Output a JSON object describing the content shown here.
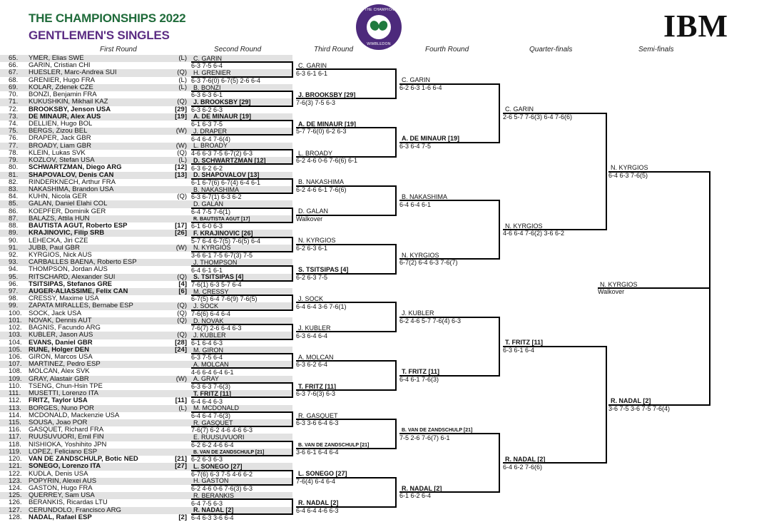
{
  "header": {
    "title": "THE CHAMPIONSHIPS 2022",
    "subtitle": "GENTLEMEN'S SINGLES",
    "logo_text_top": "THE CHAMPIONSHIPS",
    "logo_text_bottom": "WIMBLEDON",
    "sponsor": "IBM",
    "colors": {
      "title": "#1f6b3a",
      "subtitle": "#5b2c83",
      "logo": "#4d2a7c"
    }
  },
  "round_headers": [
    "First Round",
    "Second Round",
    "Third Round",
    "Fourth Round",
    "Quarter-finals",
    "Semi-finals"
  ],
  "first_round": [
    {
      "num": "65.",
      "name": "YMER, Elias SWE",
      "tag": "(L)"
    },
    {
      "num": "66.",
      "name": "GARIN, Cristian CHI",
      "tag": ""
    },
    {
      "num": "67.",
      "name": "HUESLER, Marc-Andrea SUI",
      "tag": "(Q)"
    },
    {
      "num": "68.",
      "name": "GRENIER, Hugo FRA",
      "tag": "(L)"
    },
    {
      "num": "69.",
      "name": "KOLAR, Zdenek CZE",
      "tag": "(L)"
    },
    {
      "num": "70.",
      "name": "BONZI, Benjamin FRA",
      "tag": ""
    },
    {
      "num": "71.",
      "name": "KUKUSHKIN, Mikhail KAZ",
      "tag": "(Q)"
    },
    {
      "num": "72.",
      "name": "BROOKSBY, Jenson USA",
      "tag": "[29]"
    },
    {
      "num": "73.",
      "name": "DE MINAUR, Alex AUS",
      "tag": "[19]"
    },
    {
      "num": "74.",
      "name": "DELLIEN, Hugo BOL",
      "tag": ""
    },
    {
      "num": "75.",
      "name": "BERGS, Zizou BEL",
      "tag": "(W)"
    },
    {
      "num": "76.",
      "name": "DRAPER, Jack GBR",
      "tag": ""
    },
    {
      "num": "77.",
      "name": "BROADY, Liam GBR",
      "tag": "(W)"
    },
    {
      "num": "78.",
      "name": "KLEIN, Lukas SVK",
      "tag": "(Q)"
    },
    {
      "num": "79.",
      "name": "KOZLOV, Stefan USA",
      "tag": "(L)"
    },
    {
      "num": "80.",
      "name": "SCHWARTZMAN, Diego ARG",
      "tag": "[12]"
    },
    {
      "num": "81.",
      "name": "SHAPOVALOV, Denis CAN",
      "tag": "[13]"
    },
    {
      "num": "82.",
      "name": "RINDERKNECH, Arthur FRA",
      "tag": ""
    },
    {
      "num": "83.",
      "name": "NAKASHIMA, Brandon USA",
      "tag": ""
    },
    {
      "num": "84.",
      "name": "KUHN, Nicola GER",
      "tag": "(Q)"
    },
    {
      "num": "85.",
      "name": "GALAN, Daniel Elahi COL",
      "tag": ""
    },
    {
      "num": "86.",
      "name": "KOEPFER, Dominik GER",
      "tag": ""
    },
    {
      "num": "87.",
      "name": "BALAZS, Attila HUN",
      "tag": ""
    },
    {
      "num": "88.",
      "name": "BAUTISTA AGUT, Roberto ESP",
      "tag": "[17]"
    },
    {
      "num": "89.",
      "name": "KRAJINOVIC, Filip SRB",
      "tag": "[26]"
    },
    {
      "num": "90.",
      "name": "LEHECKA, Jiri CZE",
      "tag": ""
    },
    {
      "num": "91.",
      "name": "JUBB, Paul GBR",
      "tag": "(W)"
    },
    {
      "num": "92.",
      "name": "KYRGIOS, Nick AUS",
      "tag": ""
    },
    {
      "num": "93.",
      "name": "CARBALLES BAENA, Roberto ESP",
      "tag": ""
    },
    {
      "num": "94.",
      "name": "THOMPSON, Jordan AUS",
      "tag": ""
    },
    {
      "num": "95.",
      "name": "RITSCHARD, Alexander SUI",
      "tag": "(Q)"
    },
    {
      "num": "96.",
      "name": "TSITSIPAS, Stefanos GRE",
      "tag": "[4]"
    },
    {
      "num": "97.",
      "name": "AUGER-ALIASSIME, Felix CAN",
      "tag": "[6]"
    },
    {
      "num": "98.",
      "name": "CRESSY, Maxime USA",
      "tag": ""
    },
    {
      "num": "99.",
      "name": "ZAPATA MIRALLES, Bernabe ESP",
      "tag": "(Q)"
    },
    {
      "num": "100.",
      "name": "SOCK, Jack USA",
      "tag": "(Q)"
    },
    {
      "num": "101.",
      "name": "NOVAK, Dennis AUT",
      "tag": "(Q)"
    },
    {
      "num": "102.",
      "name": "BAGNIS, Facundo ARG",
      "tag": ""
    },
    {
      "num": "103.",
      "name": "KUBLER, Jason AUS",
      "tag": "(Q)"
    },
    {
      "num": "104.",
      "name": "EVANS, Daniel GBR",
      "tag": "[28]"
    },
    {
      "num": "105.",
      "name": "RUNE, Holger DEN",
      "tag": "[24]"
    },
    {
      "num": "106.",
      "name": "GIRON, Marcos USA",
      "tag": ""
    },
    {
      "num": "107.",
      "name": "MARTINEZ, Pedro ESP",
      "tag": ""
    },
    {
      "num": "108.",
      "name": "MOLCAN, Alex SVK",
      "tag": ""
    },
    {
      "num": "109.",
      "name": "GRAY, Alastair GBR",
      "tag": "(W)"
    },
    {
      "num": "110.",
      "name": "TSENG, Chun-Hsin TPE",
      "tag": ""
    },
    {
      "num": "111.",
      "name": "MUSETTI, Lorenzo ITA",
      "tag": ""
    },
    {
      "num": "112.",
      "name": "FRITZ, Taylor USA",
      "tag": "[11]"
    },
    {
      "num": "113.",
      "name": "BORGES, Nuno POR",
      "tag": "(L)"
    },
    {
      "num": "114.",
      "name": "MCDONALD, Mackenzie USA",
      "tag": ""
    },
    {
      "num": "115.",
      "name": "SOUSA, Joao POR",
      "tag": ""
    },
    {
      "num": "116.",
      "name": "GASQUET, Richard FRA",
      "tag": ""
    },
    {
      "num": "117.",
      "name": "RUUSUVUORI, Emil FIN",
      "tag": ""
    },
    {
      "num": "118.",
      "name": "NISHIOKA, Yoshihito JPN",
      "tag": ""
    },
    {
      "num": "119.",
      "name": "LOPEZ, Feliciano ESP",
      "tag": ""
    },
    {
      "num": "120.",
      "name": "VAN DE ZANDSCHULP, Botic NED",
      "tag": "[21]"
    },
    {
      "num": "121.",
      "name": "SONEGO, Lorenzo ITA",
      "tag": "[27]"
    },
    {
      "num": "122.",
      "name": "KUDLA, Denis USA",
      "tag": ""
    },
    {
      "num": "123.",
      "name": "POPYRIN, Alexei AUS",
      "tag": ""
    },
    {
      "num": "124.",
      "name": "GASTON, Hugo FRA",
      "tag": ""
    },
    {
      "num": "125.",
      "name": "QUERREY, Sam USA",
      "tag": ""
    },
    {
      "num": "126.",
      "name": "BERANKIS, Ricardas LTU",
      "tag": ""
    },
    {
      "num": "127.",
      "name": "CERUNDOLO, Francisco ARG",
      "tag": ""
    },
    {
      "num": "128.",
      "name": "NADAL, Rafael ESP",
      "tag": "[2]"
    }
  ],
  "rounds": [
    [
      {
        "name": "C. GARIN",
        "score": "6-3 7-5 6-4"
      },
      {
        "name": "H. GRENIER",
        "score": "6-3 7-6(0) 6-7(5) 2-6 6-4"
      },
      {
        "name": "B. BONZI",
        "score": "6-3 6-3 6-1"
      },
      {
        "name": "J. BROOKSBY [29]",
        "score": "6-3 6-2 6-3"
      },
      {
        "name": "A. DE MINAUR [19]",
        "score": "6-1 6-3 7-5"
      },
      {
        "name": "J. DRAPER",
        "score": "6-4 6-4 7-6(4)"
      },
      {
        "name": "L. BROADY",
        "score": "4-6 6-3 7-5 6-7(2) 6-3"
      },
      {
        "name": "D. SCHWARTZMAN [12]",
        "score": "6-3 6-2 6-2"
      },
      {
        "name": "D. SHAPOVALOV [13]",
        "score": "6-1 6-7(6) 6-7(4) 6-4 6-1"
      },
      {
        "name": "B. NAKASHIMA",
        "score": "6-3 6-7(1) 6-3 6-2"
      },
      {
        "name": "D. GALAN",
        "score": "6-4 7-5 7-6(1)"
      },
      {
        "name": "R. BAUTISTA AGUT [17]",
        "score": "6-1 6-0 6-3"
      },
      {
        "name": "F. KRAJINOVIC [26]",
        "score": "5-7 6-4 6-7(5) 7-6(5) 6-4"
      },
      {
        "name": "N. KYRGIOS",
        "score": "3-6 6-1 7-5 6-7(3) 7-5"
      },
      {
        "name": "J. THOMPSON",
        "score": "6-4 6-1 6-1"
      },
      {
        "name": "S. TSITSIPAS [4]",
        "score": "7-6(1) 6-3 5-7 6-4"
      },
      {
        "name": "M. CRESSY",
        "score": "6-7(5) 6-4 7-6(9) 7-6(5)"
      },
      {
        "name": "J. SOCK",
        "score": "7-6(6) 6-4 6-4"
      },
      {
        "name": "D. NOVAK",
        "score": "7-6(7) 2-6 6-4 6-3"
      },
      {
        "name": "J. KUBLER",
        "score": "6-1 6-4 6-3"
      },
      {
        "name": "M. GIRON",
        "score": "6-3 7-5 6-4"
      },
      {
        "name": "A. MOLCAN",
        "score": "4-6 6-4 6-4 6-1"
      },
      {
        "name": "A. GRAY",
        "score": "6-3 6-3 7-6(3)"
      },
      {
        "name": "T. FRITZ [11]",
        "score": "6-4 6-4 6-3"
      },
      {
        "name": "M. MCDONALD",
        "score": "6-4 6-4 7-6(3)"
      },
      {
        "name": "R. GASQUET",
        "score": "7-6(7) 6-2 4-6 4-6 6-3"
      },
      {
        "name": "E. RUUSUVUORI",
        "score": "6-2 6-2 4-6 6-4"
      },
      {
        "name": "B. VAN DE ZANDSCHULP [21]",
        "score": "6-2 6-3 6-3"
      },
      {
        "name": "L. SONEGO [27]",
        "score": "6-7(6) 6-3 7-5 4-6 6-2"
      },
      {
        "name": "H. GASTON",
        "score": "6-2 4-6 0-6 7-6(3) 6-3"
      },
      {
        "name": "R. BERANKIS",
        "score": "6-4 7-5 6-3"
      },
      {
        "name": "R. NADAL [2]",
        "score": "6-4 6-3 3-6 6-4"
      }
    ],
    [
      {
        "name": "C. GARIN",
        "score": "6-3 6-1 6-1"
      },
      {
        "name": "J. BROOKSBY [29]",
        "score": "7-6(3) 7-5 6-3"
      },
      {
        "name": "A. DE MINAUR [19]",
        "score": "5-7 7-6(0) 6-2 6-3"
      },
      {
        "name": "L. BROADY",
        "score": "6-2 4-6 0-6 7-6(6) 6-1"
      },
      {
        "name": "B. NAKASHIMA",
        "score": "6-2 4-6 6-1 7-6(6)"
      },
      {
        "name": "D. GALAN",
        "score": "Walkover"
      },
      {
        "name": "N. KYRGIOS",
        "score": "6-2 6-3 6-1"
      },
      {
        "name": "S. TSITSIPAS [4]",
        "score": "6-2 6-3 7-5"
      },
      {
        "name": "J. SOCK",
        "score": "6-4 6-4 3-6 7-6(1)"
      },
      {
        "name": "J. KUBLER",
        "score": "6-3 6-4 6-4"
      },
      {
        "name": "A. MOLCAN",
        "score": "6-3 6-2 6-4"
      },
      {
        "name": "T. FRITZ [11]",
        "score": "6-3 7-6(3) 6-3"
      },
      {
        "name": "R. GASQUET",
        "score": "6-3 3-6 6-4 6-3"
      },
      {
        "name": "B. VAN DE ZANDSCHULP [21]",
        "score": "3-6 6-1 6-4 6-4"
      },
      {
        "name": "L. SONEGO [27]",
        "score": "7-6(4) 6-4 6-4"
      },
      {
        "name": "R. NADAL [2]",
        "score": "6-4 6-4 4-6 6-3"
      }
    ],
    [
      {
        "name": "C. GARIN",
        "score": "6-2 6-3 1-6 6-4"
      },
      {
        "name": "A. DE MINAUR [19]",
        "score": "6-3 6-4 7-5"
      },
      {
        "name": "B. NAKASHIMA",
        "score": "6-4 6-4 6-1"
      },
      {
        "name": "N. KYRGIOS",
        "score": "6-7(2) 6-4 6-3 7-6(7)"
      },
      {
        "name": "J. KUBLER",
        "score": "6-2 4-6 5-7 7-6(4) 6-3"
      },
      {
        "name": "T. FRITZ [11]",
        "score": "6-4 6-1 7-6(3)"
      },
      {
        "name": "B. VAN DE ZANDSCHULP [21]",
        "score": "7-5 2-6 7-6(7) 6-1"
      },
      {
        "name": "R. NADAL [2]",
        "score": "6-1 6-2 6-4"
      }
    ],
    [
      {
        "name": "C. GARIN",
        "score": "2-6 5-7 7-6(3) 6-4 7-6(6)"
      },
      {
        "name": "N. KYRGIOS",
        "score": "4-6 6-4 7-6(2) 3-6 6-2"
      },
      {
        "name": "T. FRITZ [11]",
        "score": "6-3 6-1 6-4"
      },
      {
        "name": "R. NADAL [2]",
        "score": "6-4 6-2 7-6(6)"
      }
    ],
    [
      {
        "name": "N. KYRGIOS",
        "score": "6-4 6-3 7-6(5)"
      },
      {
        "name": "R. NADAL [2]",
        "score": "3-6 7-5 3-6 7-5 7-6(4)"
      }
    ],
    [
      {
        "name": "N. KYRGIOS",
        "score": "Walkover"
      }
    ]
  ]
}
